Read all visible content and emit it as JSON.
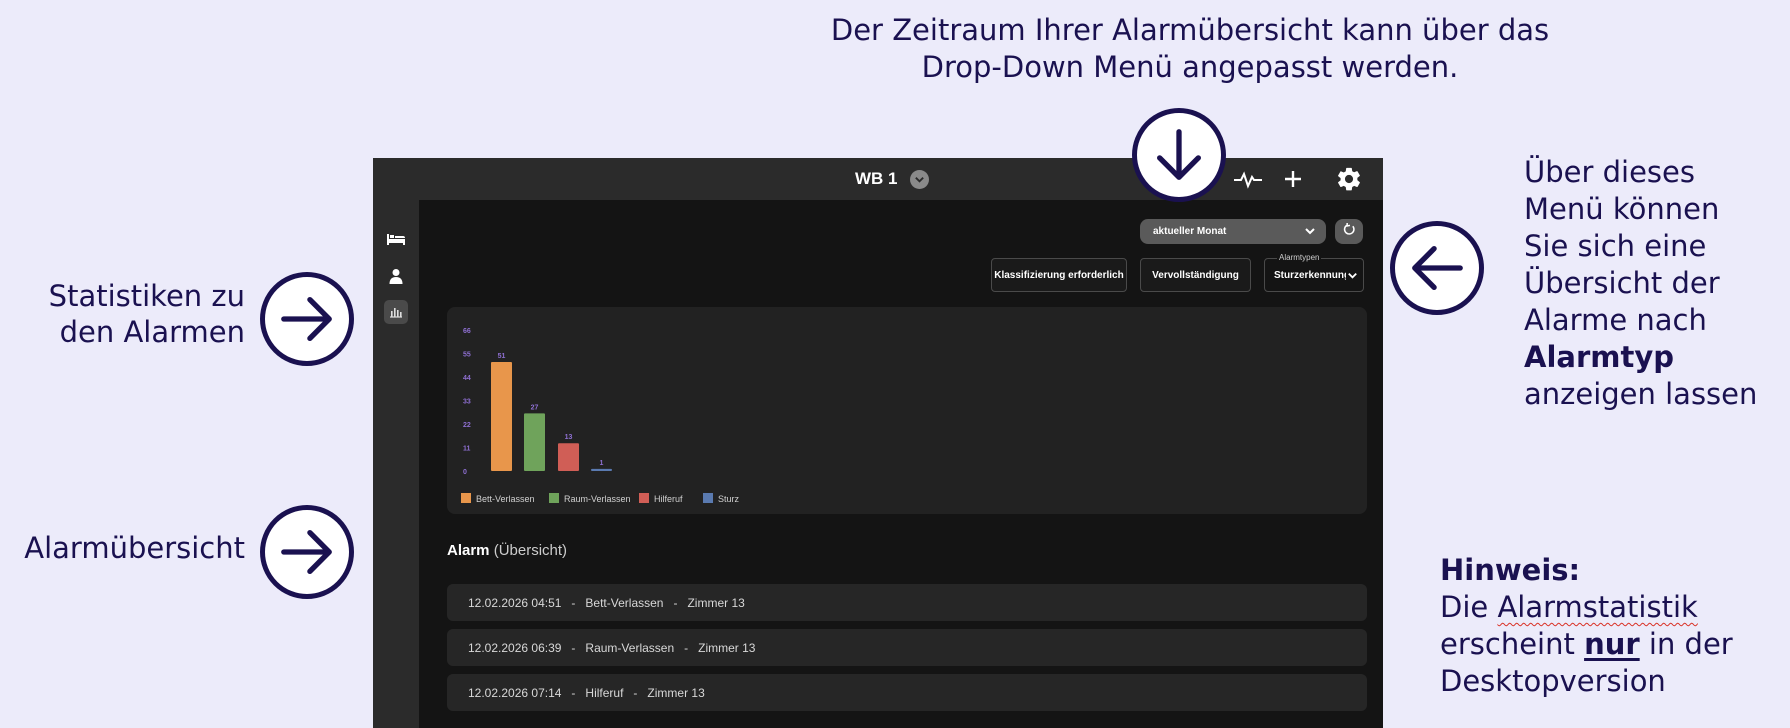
{
  "annotations": {
    "top_line1": "Der Zeitraum Ihrer Alarmübersicht kann über das",
    "top_line2": "Drop-Down Menü angepasst werden.",
    "left1_line1": "Statistiken zu",
    "left1_line2": "den Alarmen",
    "left2": "Alarmübersicht",
    "right_line1": "Über dieses",
    "right_line2": "Menü können",
    "right_line3": "Sie sich eine",
    "right_line4": "Übersicht der",
    "right_line5": "Alarme nach",
    "right_bold": "Alarmtyp",
    "right_line7": "anzeigen lassen",
    "note_title": "Hinweis:",
    "note_line2_a": "Die ",
    "note_line2_b": "Alarmstatistik",
    "note_line3_a": "erscheint ",
    "note_line3_b": "nur",
    "note_line3_c": " in der",
    "note_line4": "Desktopversion"
  },
  "app": {
    "title": "WB 1",
    "icons": [
      "chevron-down-icon",
      "activity-icon",
      "plus-icon",
      "gear-icon",
      "bed-icon",
      "person-icon",
      "bar-chart-icon",
      "refresh-icon"
    ],
    "period_dropdown": "aktueller Monat",
    "buttons": {
      "classification": "Klassifizierung erforderlich",
      "completeness": "Vervollständigung"
    },
    "alarm_select": {
      "label": "Alarmtypen",
      "value": "Sturzerkennung"
    },
    "list": {
      "title_bold": "Alarm",
      "title_sub": " (Übersicht)",
      "rows": [
        "12.02.2026 04:51   -   Bett-Verlassen   -   Zimmer 13",
        "12.02.2026 06:39   -   Raum-Verlassen   -   Zimmer 13",
        "12.02.2026 07:14   -   Hilferuf   -   Zimmer 13"
      ]
    }
  },
  "colors": {
    "annotation": "#1a1150",
    "bar_bett": "#e8964b",
    "bar_raum": "#6fa35b",
    "bar_hilfe": "#d05e56",
    "bar_sturz": "#5a7ab0",
    "axis_labels": "#8e6fd1"
  },
  "chart_data": {
    "type": "bar",
    "categories": [
      "Bett-Verlassen",
      "Raum-Verlassen",
      "Hilferuf",
      "Sturz"
    ],
    "values": [
      51,
      27,
      13,
      1
    ],
    "yticks": [
      0,
      11,
      22,
      33,
      44,
      55,
      66
    ],
    "ylim": [
      0,
      66
    ],
    "legend": [
      "Bett-Verlassen",
      "Raum-Verlassen",
      "Hilferuf",
      "Sturz"
    ],
    "legend_position": "bottom-left",
    "grid": false
  }
}
